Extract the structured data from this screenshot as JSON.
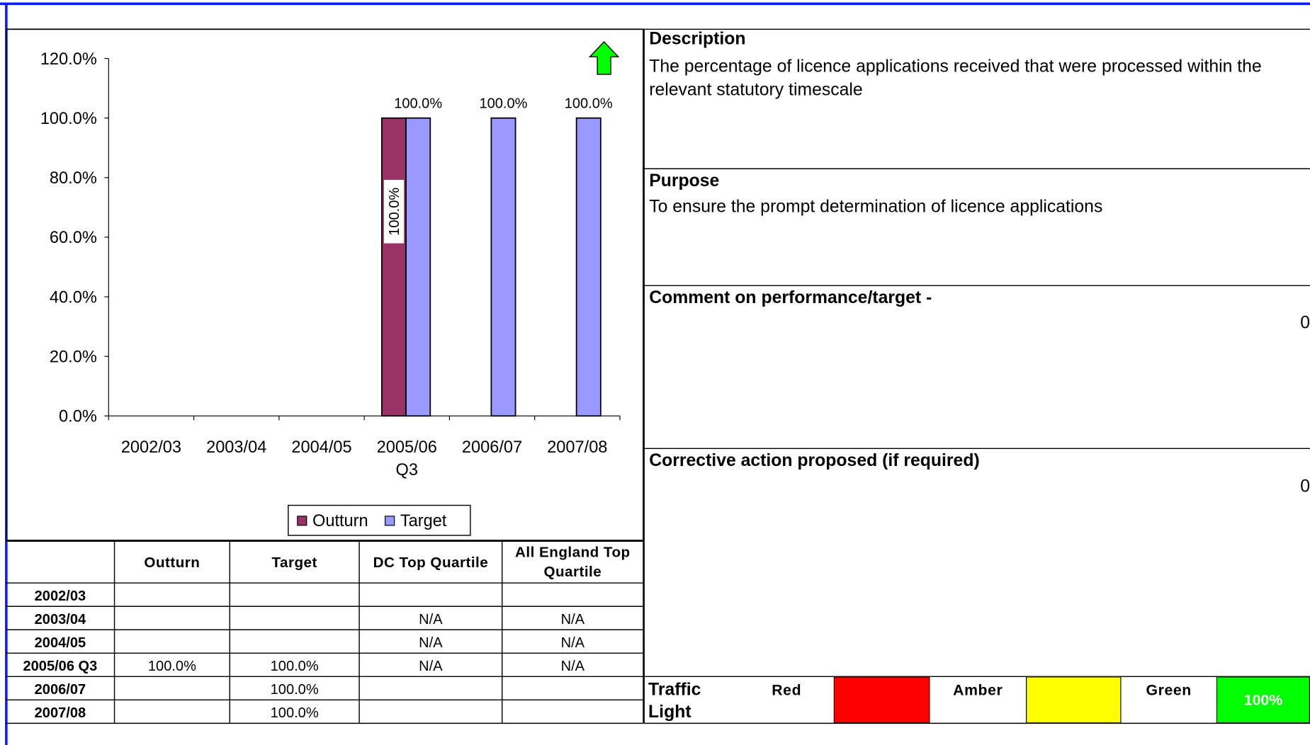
{
  "chart_data": {
    "type": "bar",
    "categories": [
      "2002/03",
      "2003/04",
      "2004/05",
      "2005/06 Q3",
      "2006/07",
      "2007/08"
    ],
    "series": [
      {
        "name": "Outturn",
        "color": "#993366",
        "values": [
          null,
          null,
          null,
          100,
          null,
          null
        ],
        "value_labels": [
          null,
          null,
          null,
          "100.0%",
          null,
          null
        ]
      },
      {
        "name": "Target",
        "color": "#9999ff",
        "values": [
          null,
          null,
          null,
          100,
          100,
          100
        ],
        "value_labels": [
          null,
          null,
          null,
          "100.0%",
          "100.0%",
          "100.0%"
        ]
      }
    ],
    "ylim": [
      0,
      120
    ],
    "yticks": [
      {
        "value": 0,
        "label": "0.0%"
      },
      {
        "value": 20,
        "label": "20.0%"
      },
      {
        "value": 40,
        "label": "40.0%"
      },
      {
        "value": 60,
        "label": "60.0%"
      },
      {
        "value": 80,
        "label": "80.0%"
      },
      {
        "value": 100,
        "label": "100.0%"
      },
      {
        "value": 120,
        "label": "120.0%"
      }
    ],
    "grid": false,
    "legend": "bottom"
  },
  "description": {
    "heading": "Description",
    "text": "The percentage of licence applications received that were processed within the relevant statutory timescale"
  },
  "purpose": {
    "heading": "Purpose",
    "text": "To ensure the prompt determination of licence applications"
  },
  "comment": {
    "heading": "Comment on performance/target -",
    "value": 0
  },
  "corrective": {
    "heading": "Corrective action proposed (if required)",
    "value": 0
  },
  "table": {
    "header": [
      "Outturn",
      "Target",
      "DC Top  Quartile",
      "All England Top Quartile"
    ],
    "rows": [
      [
        "2002/03",
        null,
        null,
        null,
        null
      ],
      [
        "2003/04",
        null,
        null,
        "N/A",
        "N/A"
      ],
      [
        "2004/05",
        null,
        null,
        "N/A",
        "N/A"
      ],
      [
        "2005/06 Q3",
        "100.0%",
        "100.0%",
        "N/A",
        "N/A"
      ],
      [
        "2006/07",
        null,
        "100.0%",
        null,
        null
      ],
      [
        "2007/08",
        null,
        "100.0%",
        null,
        null
      ]
    ]
  },
  "traffic_light": {
    "label": "Traffic Light",
    "levels": [
      {
        "name": "Red",
        "color": "#ff0000",
        "value": null
      },
      {
        "name": "Amber",
        "color": "#ffff00",
        "value": null
      },
      {
        "name": "Green",
        "color": "#00ff00",
        "value": "100%"
      }
    ]
  }
}
